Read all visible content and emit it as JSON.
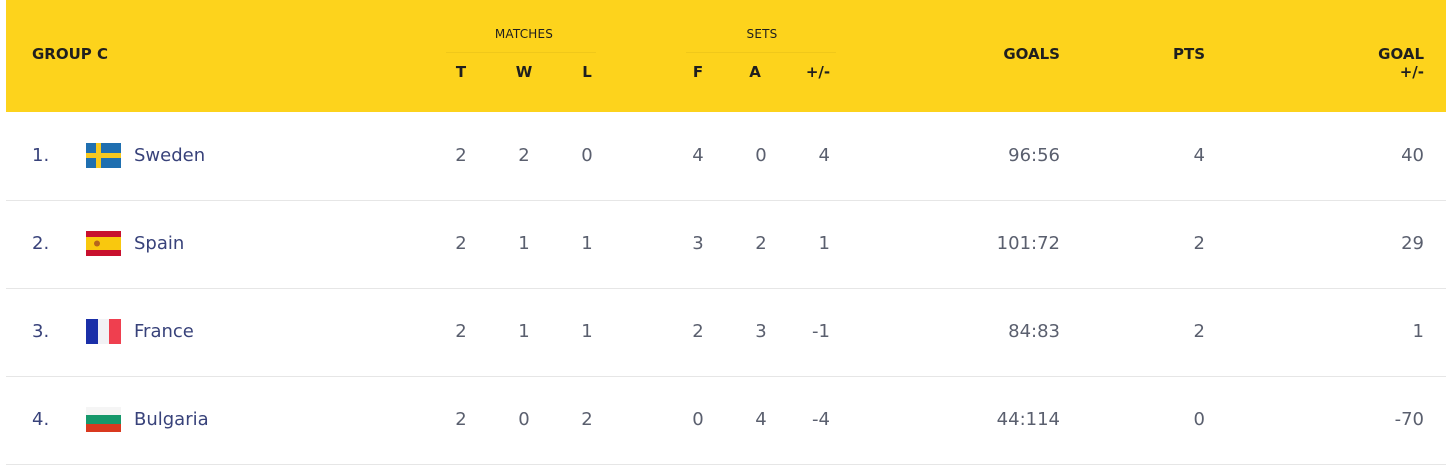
{
  "header": {
    "group": "GROUP C",
    "matches_label": "MATCHES",
    "sets_label": "SETS",
    "cols": {
      "t": "T",
      "w": "W",
      "l": "L",
      "f": "F",
      "a": "A",
      "diff": "+/-",
      "goals": "GOALS",
      "pts": "PTS",
      "goal_diff": "GOAL +/-"
    }
  },
  "colors": {
    "header_bg": "#fdd31c",
    "team_text": "#38427a",
    "value_text": "#5a5f6e"
  },
  "rows": [
    {
      "pos": "1.",
      "team": "Sweden",
      "flag": "sweden-flag-icon",
      "t": "2",
      "w": "2",
      "l": "0",
      "f": "4",
      "a": "0",
      "diff": "4",
      "goals": "96:56",
      "pts": "4",
      "goal_diff": "40"
    },
    {
      "pos": "2.",
      "team": "Spain",
      "flag": "spain-flag-icon",
      "t": "2",
      "w": "1",
      "l": "1",
      "f": "3",
      "a": "2",
      "diff": "1",
      "goals": "101:72",
      "pts": "2",
      "goal_diff": "29"
    },
    {
      "pos": "3.",
      "team": "France",
      "flag": "france-flag-icon",
      "t": "2",
      "w": "1",
      "l": "1",
      "f": "2",
      "a": "3",
      "diff": "-1",
      "goals": "84:83",
      "pts": "2",
      "goal_diff": "1"
    },
    {
      "pos": "4.",
      "team": "Bulgaria",
      "flag": "bulgaria-flag-icon",
      "t": "2",
      "w": "0",
      "l": "2",
      "f": "0",
      "a": "4",
      "diff": "-4",
      "goals": "44:114",
      "pts": "0",
      "goal_diff": "-70"
    }
  ]
}
